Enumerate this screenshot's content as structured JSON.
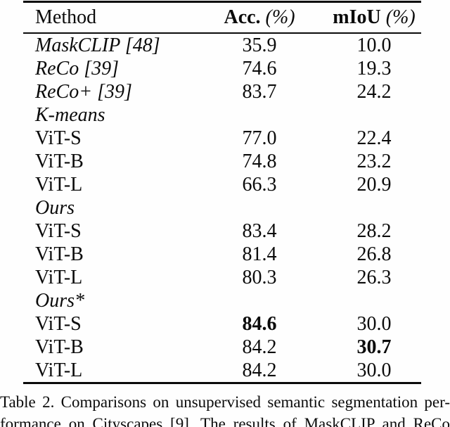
{
  "table": {
    "header": {
      "method": "Method",
      "acc_name": "Acc.",
      "acc_unit": " (%)",
      "miou_name": "mIoU",
      "miou_unit": " (%)"
    },
    "rows": [
      {
        "method": "MaskCLIP [48]",
        "italic": true,
        "indent": false,
        "acc": "35.9",
        "acc_bold": false,
        "miou": "10.0",
        "miou_bold": false
      },
      {
        "method": "ReCo [39]",
        "italic": true,
        "indent": false,
        "acc": "74.6",
        "acc_bold": false,
        "miou": "19.3",
        "miou_bold": false
      },
      {
        "method": "ReCo+ [39]",
        "italic": true,
        "indent": false,
        "acc": "83.7",
        "acc_bold": false,
        "miou": "24.2",
        "miou_bold": false
      },
      {
        "method": "K-means",
        "italic": true,
        "indent": false,
        "acc": "",
        "acc_bold": false,
        "miou": "",
        "miou_bold": false
      },
      {
        "method": "ViT-S",
        "italic": false,
        "indent": true,
        "acc": "77.0",
        "acc_bold": false,
        "miou": "22.4",
        "miou_bold": false
      },
      {
        "method": "ViT-B",
        "italic": false,
        "indent": true,
        "acc": "74.8",
        "acc_bold": false,
        "miou": "23.2",
        "miou_bold": false
      },
      {
        "method": "ViT-L",
        "italic": false,
        "indent": true,
        "acc": "66.3",
        "acc_bold": false,
        "miou": "20.9",
        "miou_bold": false
      },
      {
        "method": "Ours",
        "italic": true,
        "indent": false,
        "acc": "",
        "acc_bold": false,
        "miou": "",
        "miou_bold": false
      },
      {
        "method": "ViT-S",
        "italic": false,
        "indent": true,
        "acc": "83.4",
        "acc_bold": false,
        "miou": "28.2",
        "miou_bold": false
      },
      {
        "method": "ViT-B",
        "italic": false,
        "indent": true,
        "acc": "81.4",
        "acc_bold": false,
        "miou": "26.8",
        "miou_bold": false
      },
      {
        "method": "ViT-L",
        "italic": false,
        "indent": true,
        "acc": "80.3",
        "acc_bold": false,
        "miou": "26.3",
        "miou_bold": false
      },
      {
        "method": "Ours*",
        "italic": true,
        "indent": false,
        "acc": "",
        "acc_bold": false,
        "miou": "",
        "miou_bold": false
      },
      {
        "method": "ViT-S",
        "italic": false,
        "indent": true,
        "acc": "84.6",
        "acc_bold": true,
        "miou": "30.0",
        "miou_bold": false
      },
      {
        "method": "ViT-B",
        "italic": false,
        "indent": true,
        "acc": "84.2",
        "acc_bold": false,
        "miou": "30.7",
        "miou_bold": true
      },
      {
        "method": "ViT-L",
        "italic": false,
        "indent": true,
        "acc": "84.2",
        "acc_bold": false,
        "miou": "30.0",
        "miou_bold": false
      }
    ]
  },
  "caption": {
    "line1": "Table 2. Comparisons on unsupervised semantic segmentation per-",
    "line2": "formance on Cityscapes [9]. The results of MaskCLIP and ReCo"
  }
}
